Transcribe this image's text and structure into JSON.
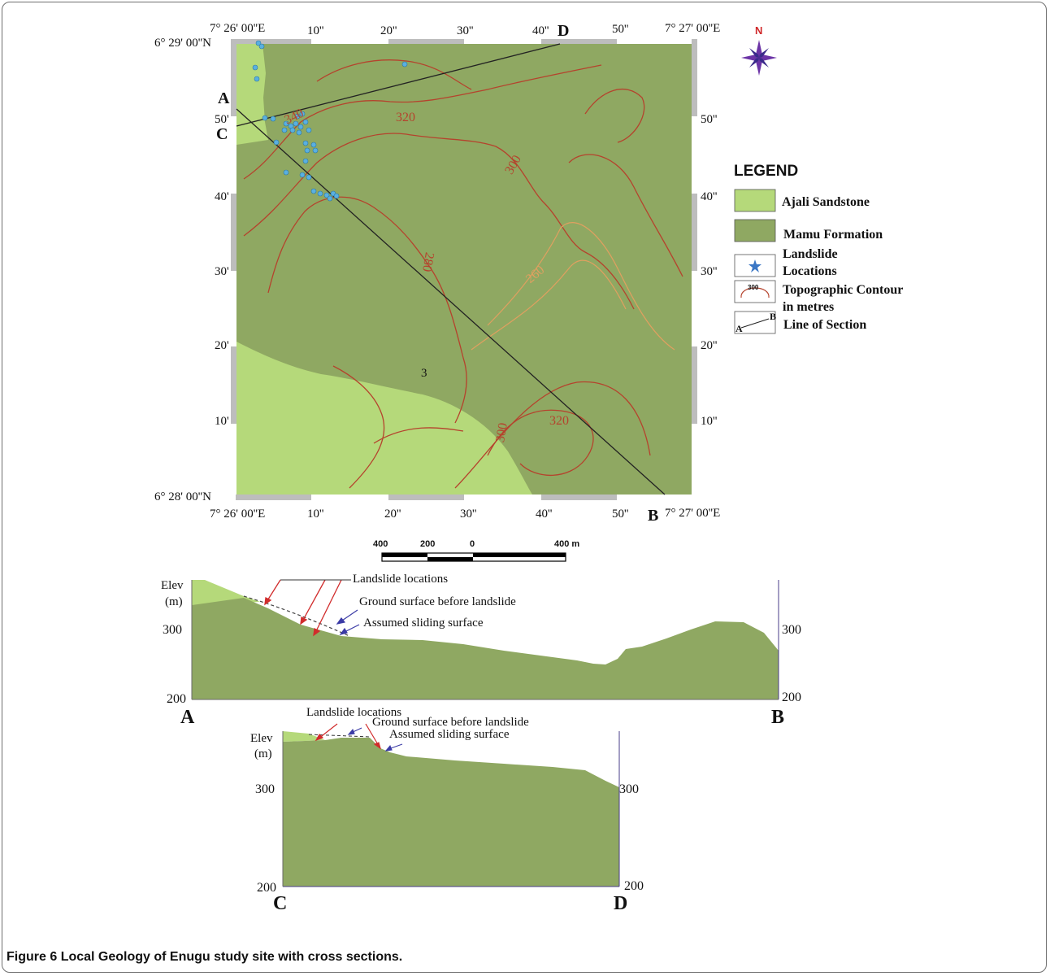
{
  "map": {
    "lon_ticks_top": [
      "7° 26' 00''E",
      "10''",
      "20''",
      "30''",
      "40''",
      "50''",
      "7° 27' 00''E"
    ],
    "lon_ticks_bottom": [
      "7° 26' 00''E",
      "10''",
      "20''",
      "30''",
      "40''",
      "50''",
      "7° 27' 00''E"
    ],
    "lat_ticks_left": [
      "6° 29' 00''N",
      "50'",
      "40'",
      "30'",
      "20'",
      "10'",
      "6° 28' 00''N"
    ],
    "lat_ticks_right": [
      "50''",
      "40''",
      "30''",
      "20''",
      "10''"
    ],
    "section_letters": {
      "a": "A",
      "b": "B",
      "c": "C",
      "d": "D"
    },
    "contour_labels": [
      "340",
      "320",
      "300",
      "280",
      "260",
      "3",
      "320",
      "300"
    ],
    "north_label": "N",
    "colors": {
      "ajali": "#b5d97a",
      "mamu": "#8fa862",
      "contour_red": "#b5432d",
      "contour_orange": "#e0a060",
      "landslide": "#5ab0e0"
    }
  },
  "scale_bar": {
    "labels": [
      "400",
      "200",
      "0",
      "400 m"
    ]
  },
  "legend": {
    "title": "LEGEND",
    "items": [
      {
        "label": "Ajali Sandstone",
        "symbol": "ajali-swatch"
      },
      {
        "label": "Mamu Formation",
        "symbol": "mamu-swatch"
      },
      {
        "label": "Landslide Locations",
        "symbol": "star-icon"
      },
      {
        "label": "Topographic Contour in metres",
        "symbol": "contour-symbol",
        "symbol_text": "300"
      },
      {
        "label": "Line of Section",
        "symbol": "section-line-symbol",
        "symbol_text_a": "A",
        "symbol_text_b": "B"
      }
    ]
  },
  "section_ab": {
    "y_label_top": "Elev",
    "y_label_unit": "(m)",
    "y_ticks": [
      "300",
      "200"
    ],
    "right_ticks": [
      "300",
      "200"
    ],
    "start": "A",
    "end": "B",
    "annotations": {
      "landslide": "Landslide locations",
      "ground": "Ground surface before landslide",
      "sliding": "Assumed sliding surface"
    }
  },
  "section_cd": {
    "y_label_top": "Elev",
    "y_label_unit": "(m)",
    "y_ticks": [
      "300",
      "200"
    ],
    "right_ticks": [
      "300",
      "200"
    ],
    "start": "C",
    "end": "D",
    "annotations": {
      "landslide": "Landslide locations",
      "ground": "Ground surface before landslide",
      "sliding": "Assumed sliding surface"
    }
  },
  "caption": {
    "prefix": "Figure 6",
    "text": "Local Geology of Enugu study site with cross sections."
  }
}
